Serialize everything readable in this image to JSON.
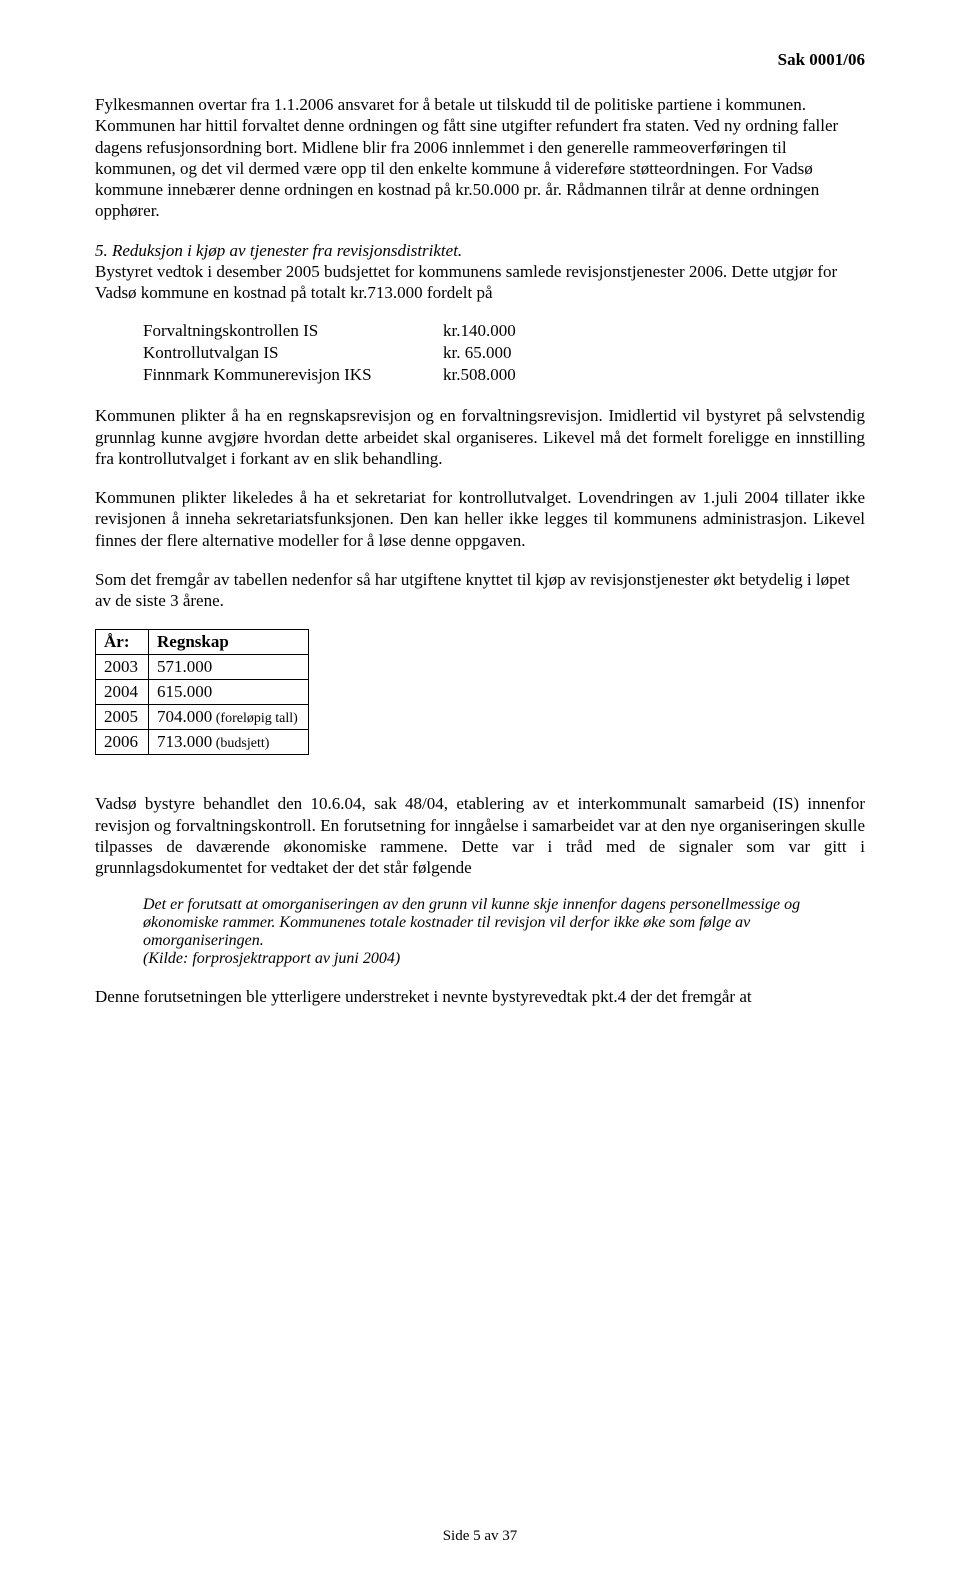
{
  "header": {
    "case_number": "Sak 0001/06"
  },
  "paragraphs": {
    "p1": "Fylkesmannen overtar fra 1.1.2006 ansvaret for å betale ut tilskudd til de politiske partiene i kommunen. Kommunen har hittil forvaltet denne ordningen og fått sine utgifter refundert fra staten. Ved ny ordning faller dagens refusjonsordning bort. Midlene blir fra 2006 innlemmet i den generelle rammeoverføringen til kommunen, og det vil dermed være opp til den enkelte kommune å videreføre støtteordningen. For Vadsø kommune innebærer denne ordningen en kostnad på kr.50.000 pr. år. Rådmannen tilrår at denne ordningen opphører.",
    "p2_heading": "5. Reduksjon i kjøp av tjenester fra revisjonsdistriktet.",
    "p2_body": "Bystyret vedtok i desember 2005 budsjettet for kommunens samlede revisjonstjenester 2006. Dette utgjør for Vadsø kommune en kostnad på totalt kr.713.000 fordelt på",
    "p3": "Kommunen plikter å ha en regnskapsrevisjon og en forvaltningsrevisjon. Imidlertid vil bystyret på selvstendig grunnlag kunne avgjøre hvordan dette arbeidet skal organiseres. Likevel må det formelt foreligge en innstilling fra kontrollutvalget i forkant av en slik behandling.",
    "p4": "Kommunen plikter likeledes å ha et sekretariat for kontrollutvalget. Lovendringen av 1.juli 2004 tillater ikke revisjonen å inneha sekretariatsfunksjonen. Den kan heller ikke legges til kommunens administrasjon. Likevel finnes der flere alternative modeller for å løse denne oppgaven.",
    "p5": "Som det fremgår av tabellen nedenfor så har utgiftene knyttet til kjøp av revisjonstjenester økt betydelig i løpet av de siste 3 årene.",
    "p6": "Vadsø bystyre behandlet den 10.6.04, sak 48/04, etablering av et interkommunalt samarbeid (IS) innenfor revisjon og forvaltningskontroll. En forutsetning for inngåelse i samarbeidet var at den nye organiseringen skulle tilpasses de daværende økonomiske rammene. Dette var i tråd med de signaler som var gitt i grunnlagsdokumentet for vedtaket der det står følgende",
    "quote_l1": "Det er forutsatt at omorganiseringen av den grunn vil kunne skje innenfor dagens personellmessige og økonomiske rammer. Kommunenes totale kostnader til revisjon vil derfor ikke øke som følge av omorganiseringen.",
    "quote_l2": "(Kilde: forprosjektrapport av juni 2004)",
    "p7": "Denne forutsetningen ble ytterligere understreket i nevnte bystyrevedtak pkt.4 der det fremgår at"
  },
  "cost_list": {
    "rows": [
      {
        "label": "Forvaltningskontrollen IS",
        "value": "kr.140.000"
      },
      {
        "label": "Kontrollutvalgan IS",
        "value": "kr.  65.000"
      },
      {
        "label": "Finnmark Kommunerevisjon IKS",
        "value": "kr.508.000"
      }
    ]
  },
  "regnskap_table": {
    "columns": [
      "År:",
      "Regnskap"
    ],
    "rows": [
      {
        "year": "2003",
        "value": "571.000",
        "note": ""
      },
      {
        "year": "2004",
        "value": "615.000",
        "note": ""
      },
      {
        "year": "2005",
        "value": "704.000",
        "note": " (foreløpig tall)"
      },
      {
        "year": "2006",
        "value": "713.000",
        "note": " (budsjett)"
      }
    ]
  },
  "footer": {
    "text": "Side 5 av 37"
  }
}
